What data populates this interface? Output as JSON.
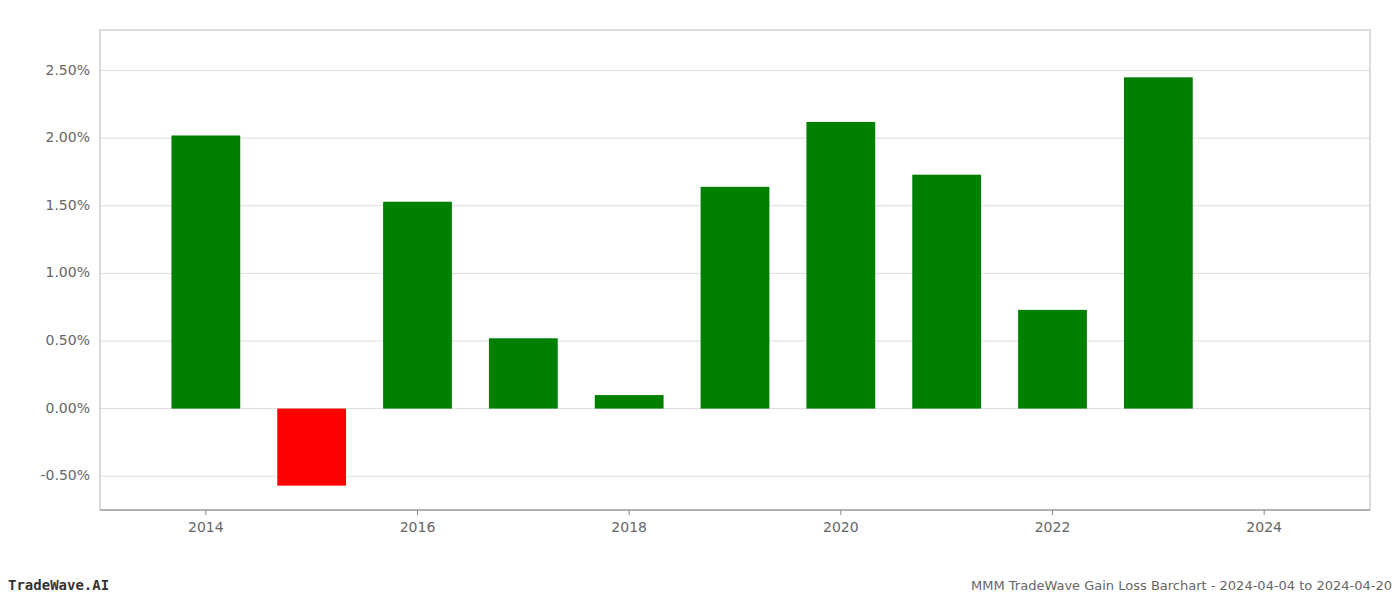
{
  "chart_data": {
    "type": "bar",
    "title": "MMM TradeWave Gain Loss Barchart - 2024-04-04 to 2024-04-20",
    "annotations": [
      "TradeWave.AI"
    ],
    "x": [
      2014,
      2015,
      2016,
      2017,
      2018,
      2019,
      2020,
      2021,
      2022,
      2023
    ],
    "values": [
      0.0202,
      -0.0057,
      0.0153,
      0.0052,
      0.001,
      0.0164,
      0.0212,
      0.0173,
      0.0073,
      0.0245
    ],
    "colors": [
      "#008000",
      "#ff0000",
      "#008000",
      "#008000",
      "#008000",
      "#008000",
      "#008000",
      "#008000",
      "#008000",
      "#008000"
    ],
    "xlim": [
      2013.0,
      2025.0
    ],
    "xticks": [
      2014,
      2016,
      2018,
      2020,
      2022,
      2024
    ],
    "ylim": [
      -0.0075,
      0.028
    ],
    "yticks": [
      {
        "value": -0.005,
        "label": "-0.50%"
      },
      {
        "value": 0.0,
        "label": "0.00%"
      },
      {
        "value": 0.005,
        "label": "0.50%"
      },
      {
        "value": 0.01,
        "label": "1.00%"
      },
      {
        "value": 0.015,
        "label": "1.50%"
      },
      {
        "value": 0.02,
        "label": "2.00%"
      },
      {
        "value": 0.025,
        "label": "2.50%"
      }
    ],
    "grid": true
  }
}
